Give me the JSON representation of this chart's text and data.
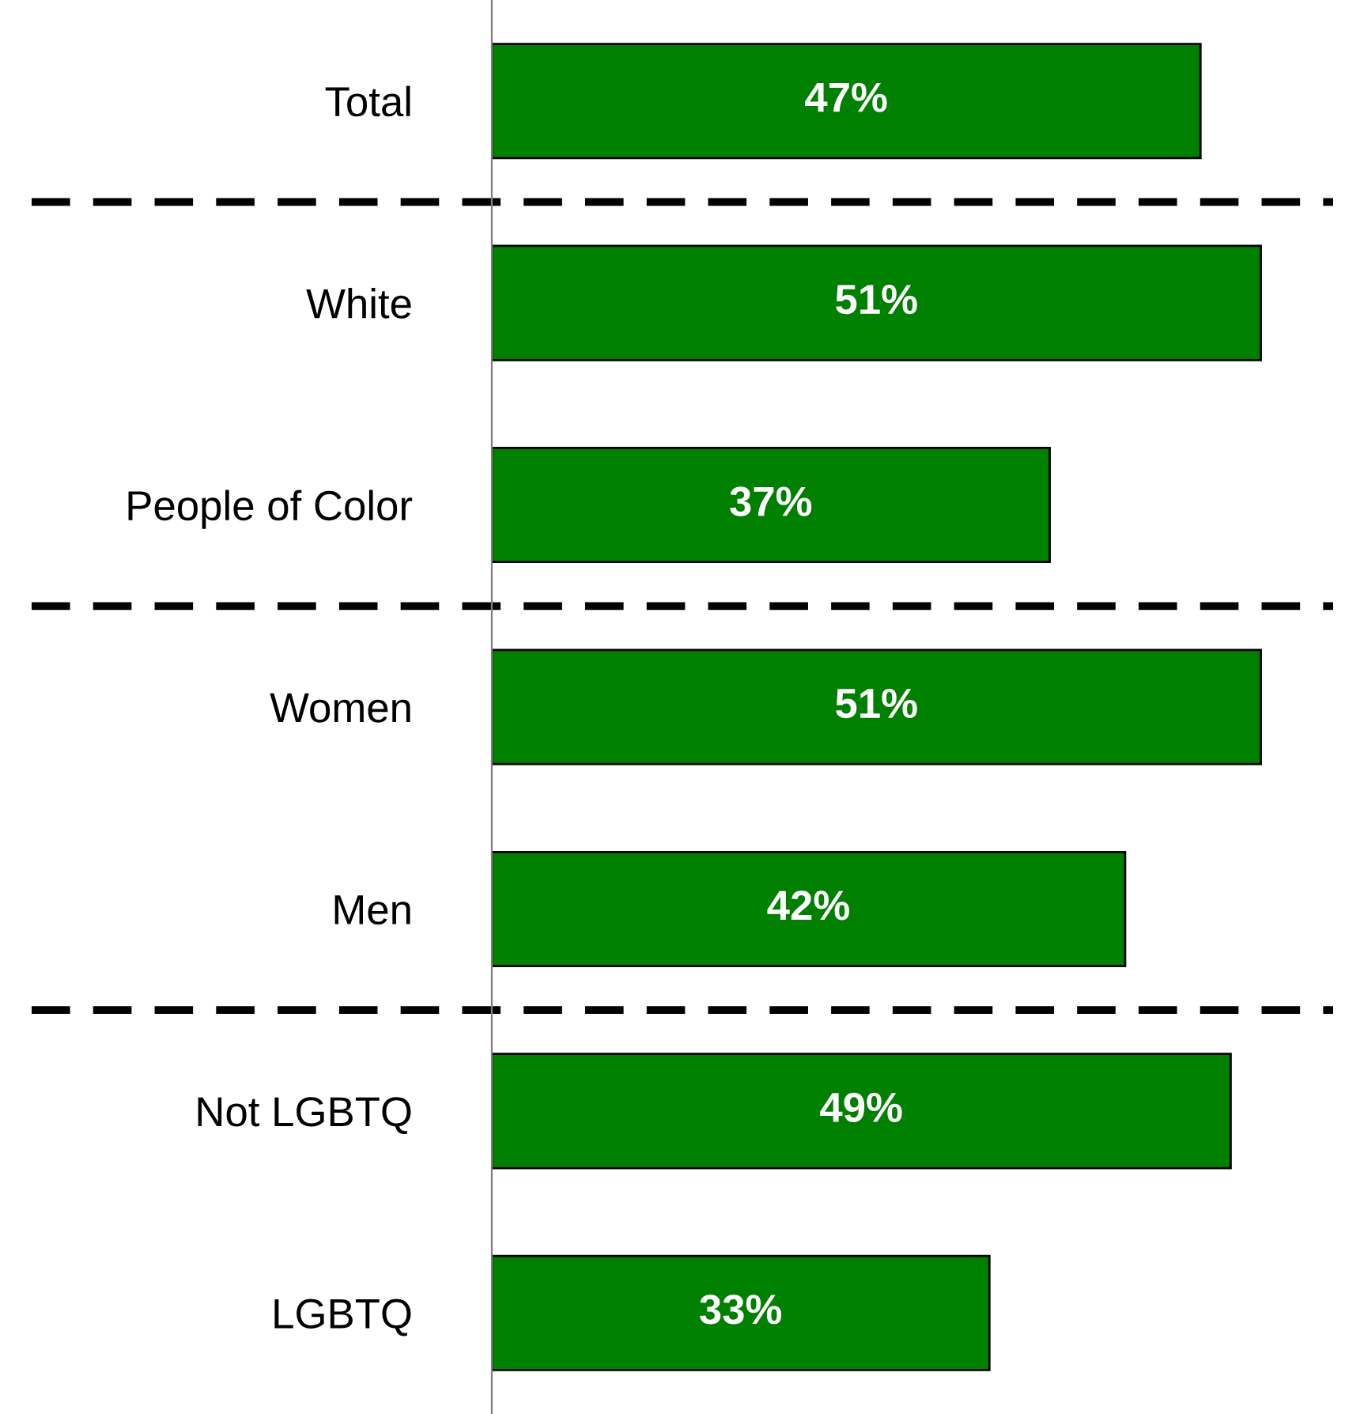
{
  "chart_data": {
    "type": "bar",
    "orientation": "horizontal",
    "categories": [
      "Total",
      "White",
      "People of Color",
      "Women",
      "Men",
      "Not LGBTQ",
      "LGBTQ"
    ],
    "values": [
      47,
      51,
      37,
      51,
      42,
      49,
      33
    ],
    "value_labels": [
      "47%",
      "51%",
      "37%",
      "51%",
      "42%",
      "49%",
      "33%"
    ],
    "color": "#008000",
    "tick_labels": "y",
    "grid": false,
    "legend": false
  }
}
